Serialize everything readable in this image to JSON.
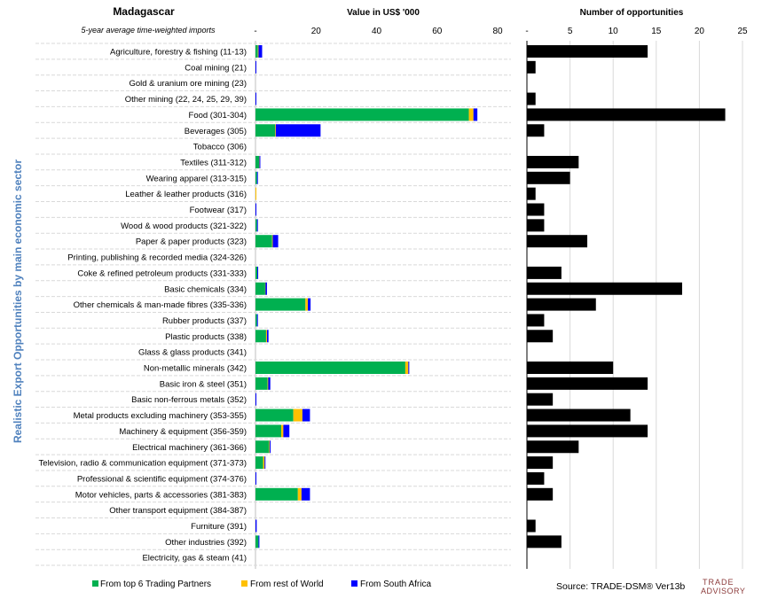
{
  "country": "Madagascar",
  "subtitle": "5-year average time-weighted imports",
  "y_axis_title": "Realistic Export Opportunities by main economic sector",
  "source_text": "Source: TRADE-DSM®  Ver13b",
  "logo_text": [
    "TRADE",
    "ADVISORY"
  ],
  "colors": {
    "top6": "#00b050",
    "rest": "#ffc000",
    "sa": "#0000ff",
    "count_bar": "#000000",
    "grid": "#d9d9d9",
    "y_title": "#4f81bd"
  },
  "chart_data": [
    {
      "type": "bar",
      "orientation": "horizontal",
      "stacked": true,
      "title": "Value in US$ '000",
      "xlim": [
        0,
        80
      ],
      "xticks": [
        "-",
        "20",
        "40",
        "60",
        "80"
      ],
      "categories": [
        "Agriculture, forestry & fishing (11-13)",
        "Coal mining (21)",
        "Gold & uranium ore mining (23)",
        "Other mining (22, 24, 25, 29, 39)",
        "Food (301-304)",
        "Beverages (305)",
        "Tobacco (306)",
        "Textiles (311-312)",
        "Wearing apparel (313-315)",
        "Leather & leather products (316)",
        "Footwear (317)",
        "Wood & wood products (321-322)",
        "Paper & paper products (323)",
        "Printing, publishing & recorded media (324-326)",
        "Coke & refined petroleum products (331-333)",
        "Basic chemicals (334)",
        "Other chemicals & man-made fibres (335-336)",
        "Rubber products (337)",
        "Plastic products (338)",
        "Glass & glass products (341)",
        "Non-metallic minerals (342)",
        "Basic iron & steel (351)",
        "Basic non-ferrous metals (352)",
        "Metal products excluding machinery (353-355)",
        "Machinery & equipment (356-359)",
        "Electrical machinery (361-366)",
        "Television, radio & communication equipment (371-373)",
        "Professional & scientific equipment (374-376)",
        "Motor vehicles, parts & accessories (381-383)",
        "Other transport equipment (384-387)",
        "Furniture (391)",
        "Other industries (392)",
        "Electricity, gas & steam (41)"
      ],
      "series": [
        {
          "name": "From top 6 Trading Partners",
          "color_key": "top6",
          "values": [
            0.8,
            0,
            0,
            0,
            70.5,
            6.5,
            0,
            1.2,
            0.5,
            0,
            0,
            0.5,
            5.5,
            0,
            0.6,
            3.2,
            16.5,
            0.5,
            3.5,
            0,
            49.5,
            4.0,
            0,
            12.5,
            8.5,
            4.5,
            2.5,
            0,
            14.0,
            0,
            0,
            1.0,
            0
          ]
        },
        {
          "name": "From rest of World",
          "color_key": "rest",
          "values": [
            0.2,
            0,
            0,
            0,
            1.5,
            0.2,
            0,
            0.1,
            0,
            0.3,
            0,
            0,
            0.2,
            0,
            0,
            0.1,
            0.8,
            0,
            0.3,
            0,
            1.0,
            0.2,
            0,
            3.0,
            0.7,
            0.2,
            0.5,
            0,
            1.2,
            0,
            0,
            0,
            0
          ]
        },
        {
          "name": "From South Africa",
          "color_key": "sa",
          "values": [
            1.2,
            0.2,
            0,
            0.2,
            1.3,
            14.8,
            0,
            0.3,
            0.2,
            0,
            0.3,
            0.2,
            1.8,
            0,
            0.2,
            0.5,
            0.9,
            0.2,
            0.5,
            0,
            0.3,
            0.7,
            0.3,
            2.5,
            2.0,
            0.3,
            0.2,
            0.3,
            2.8,
            0,
            0.4,
            0.2,
            0
          ]
        }
      ]
    },
    {
      "type": "bar",
      "orientation": "horizontal",
      "title": "Number of opportunities",
      "xlim": [
        0,
        25
      ],
      "xticks": [
        "-",
        "5",
        "10",
        "15",
        "20",
        "25"
      ],
      "values": [
        14,
        1,
        0,
        1,
        23,
        2,
        0,
        6,
        5,
        1,
        2,
        2,
        7,
        0,
        4,
        18,
        8,
        2,
        3,
        0,
        10,
        14,
        3,
        12,
        14,
        6,
        3,
        2,
        3,
        0,
        1,
        4,
        0
      ]
    }
  ]
}
